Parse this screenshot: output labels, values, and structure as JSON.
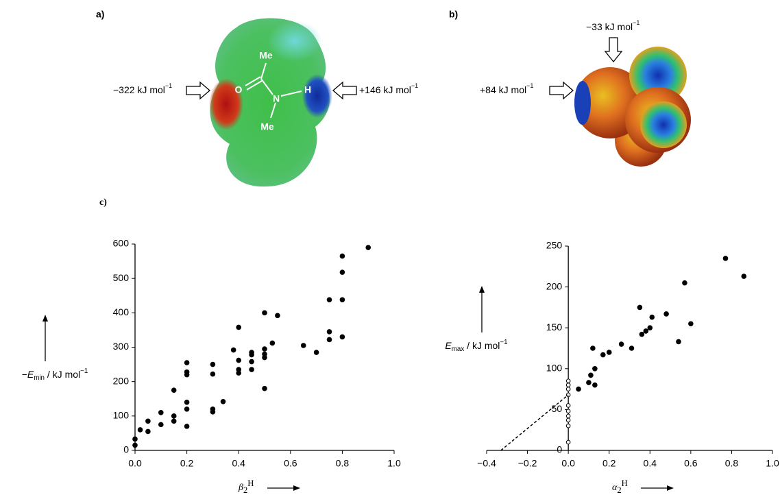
{
  "panels": {
    "a": {
      "label": "a)",
      "left": {
        "text": "−322 kJ mol",
        "sup": "−1"
      },
      "right": {
        "text": "+146 kJ mol",
        "sup": "−1"
      },
      "atoms": [
        "Me",
        "O",
        "N",
        "H",
        "Me"
      ]
    },
    "b": {
      "label": "b)",
      "top": {
        "text": "−33 kJ mol",
        "sup": "−1"
      },
      "left": {
        "text": "+84 kJ mol",
        "sup": "−1"
      }
    },
    "c": {
      "label": "c)"
    }
  },
  "chart_data": [
    {
      "type": "scatter",
      "xlabel": {
        "symbol": "β",
        "sub": "2",
        "sup": "H"
      },
      "ylabel": {
        "prefix": "−",
        "symbol": "E",
        "sub": "min",
        "unit": " / kJ mol",
        "sup": "−1"
      },
      "xlim": [
        0,
        1
      ],
      "ylim": [
        0,
        600
      ],
      "xticks": [
        {
          "value": 0,
          "label": "0.0"
        },
        0.2,
        0.4,
        0.6,
        0.8,
        {
          "value": 1,
          "label": "1.0"
        }
      ],
      "yticks": [
        0,
        100,
        200,
        300,
        400,
        500,
        600
      ],
      "series": [
        {
          "color": "#000000",
          "marker": "filled",
          "x": [
            0,
            0,
            0.02,
            0.05,
            0.05,
            0.1,
            0.1,
            0.15,
            0.15,
            0.15,
            0.2,
            0.2,
            0.2,
            0.2,
            0.2,
            0.2,
            0.3,
            0.3,
            0.3,
            0.3,
            0.34,
            0.38,
            0.4,
            0.4,
            0.4,
            0.4,
            0.45,
            0.45,
            0.45,
            0.45,
            0.5,
            0.5,
            0.5,
            0.5,
            0.5,
            0.53,
            0.55,
            0.65,
            0.7,
            0.75,
            0.75,
            0.75,
            0.8,
            0.8,
            0.8,
            0.8,
            0.9
          ],
          "values": [
            15,
            33,
            60,
            55,
            85,
            75,
            110,
            85,
            100,
            175,
            70,
            120,
            140,
            220,
            228,
            255,
            112,
            120,
            222,
            250,
            142,
            292,
            225,
            235,
            262,
            358,
            235,
            258,
            278,
            285,
            180,
            270,
            280,
            295,
            400,
            312,
            392,
            305,
            285,
            322,
            345,
            438,
            330,
            438,
            518,
            565,
            590
          ]
        }
      ]
    },
    {
      "type": "scatter",
      "xlabel": {
        "symbol": "α",
        "sub": "2",
        "sup": "H"
      },
      "ylabel": {
        "prefix": "",
        "symbol": "E",
        "sub": "max",
        "unit": " / kJ mol",
        "sup": "−1"
      },
      "xlim": [
        -0.4,
        1
      ],
      "ylim": [
        0,
        250
      ],
      "xticks": [
        {
          "value": -0.4,
          "label": "−0.4"
        },
        {
          "value": -0.2,
          "label": "−0.2"
        },
        {
          "value": 0,
          "label": "0.0"
        },
        0.2,
        0.4,
        0.6,
        0.8,
        {
          "value": 1,
          "label": "1.0"
        }
      ],
      "yticks": [
        0,
        50,
        100,
        150,
        200,
        250
      ],
      "series": [
        {
          "color": "#000000",
          "marker": "filled",
          "x": [
            0.05,
            0.1,
            0.11,
            0.12,
            0.13,
            0.13,
            0.17,
            0.2,
            0.26,
            0.31,
            0.35,
            0.36,
            0.38,
            0.4,
            0.41,
            0.48,
            0.54,
            0.57,
            0.6,
            0.77,
            0.86
          ],
          "values": [
            75,
            83,
            92,
            125,
            80,
            100,
            117,
            120,
            130,
            125,
            175,
            142,
            146,
            150,
            163,
            167,
            133,
            205,
            155,
            235,
            213
          ]
        },
        {
          "color": "#000000",
          "marker": "open",
          "x": [
            0,
            0,
            0,
            0,
            0,
            0,
            0,
            0,
            0,
            0
          ],
          "values": [
            10,
            30,
            37,
            42,
            48,
            55,
            68,
            75,
            80,
            85
          ]
        },
        {
          "color": "#000000",
          "marker": "dashed-line",
          "x": [
            -0.33,
            0
          ],
          "values": [
            0,
            68
          ]
        }
      ]
    }
  ]
}
